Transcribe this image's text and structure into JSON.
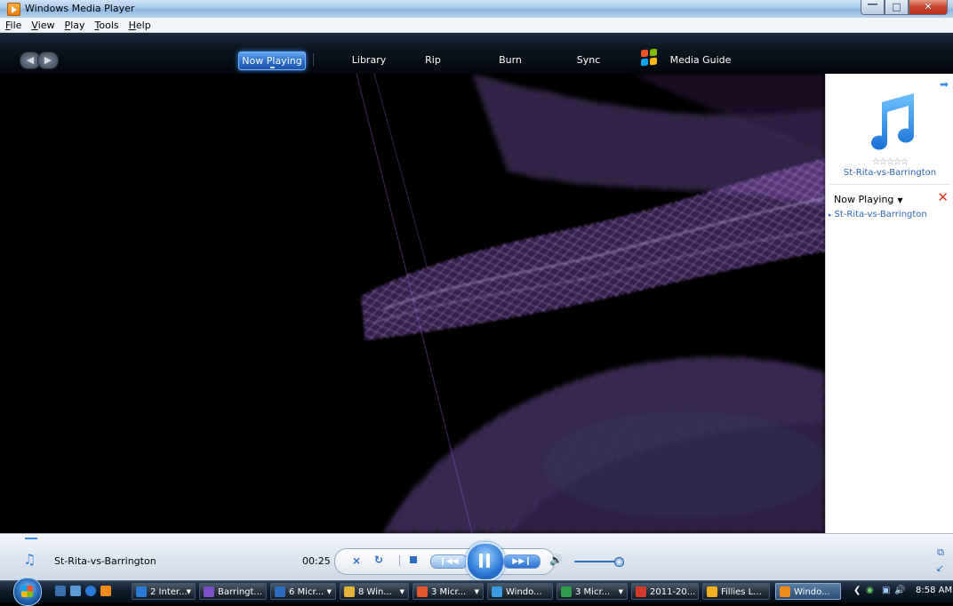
{
  "window": {
    "title": "Windows Media Player"
  },
  "menu": [
    "File",
    "View",
    "Play",
    "Tools",
    "Help"
  ],
  "nav": {
    "tabs": [
      {
        "label": "Now Playing",
        "active": true
      },
      {
        "label": "Library"
      },
      {
        "label": "Rip"
      },
      {
        "label": "Burn"
      },
      {
        "label": "Sync"
      },
      {
        "label": "Media Guide"
      }
    ]
  },
  "panel": {
    "album_title": "St-Rita-vs-Barrington",
    "list_header": "Now Playing",
    "items": [
      "St-Rita-vs-Barrington"
    ]
  },
  "player": {
    "now_playing": "St-Rita-vs-Barrington",
    "elapsed": "00:25",
    "volume_fraction": 0.9
  },
  "taskbar": {
    "buttons": [
      {
        "label": "2 Inter...",
        "icon_color": "#2a7ad8"
      },
      {
        "label": "Barringt...",
        "icon_color": "#7a4fc8"
      },
      {
        "label": "6 Micr...",
        "icon_color": "#2b6cc0"
      },
      {
        "label": "8 Win...",
        "icon_color": "#e3b43a"
      },
      {
        "label": "3 Micr...",
        "icon_color": "#e4572e"
      },
      {
        "label": "Windo...",
        "icon_color": "#3b9be0"
      },
      {
        "label": "3 Micr...",
        "icon_color": "#2f9a4a"
      },
      {
        "label": "2011-20...",
        "icon_color": "#d23b2b"
      },
      {
        "label": "Fillies L...",
        "icon_color": "#f0b020"
      },
      {
        "label": "Windo...",
        "icon_color": "#f08a18",
        "active": true
      }
    ],
    "clock": "8:58 AM"
  },
  "colors": {
    "accent": "#2b6cc8",
    "panel_text": "#2d66b5"
  }
}
